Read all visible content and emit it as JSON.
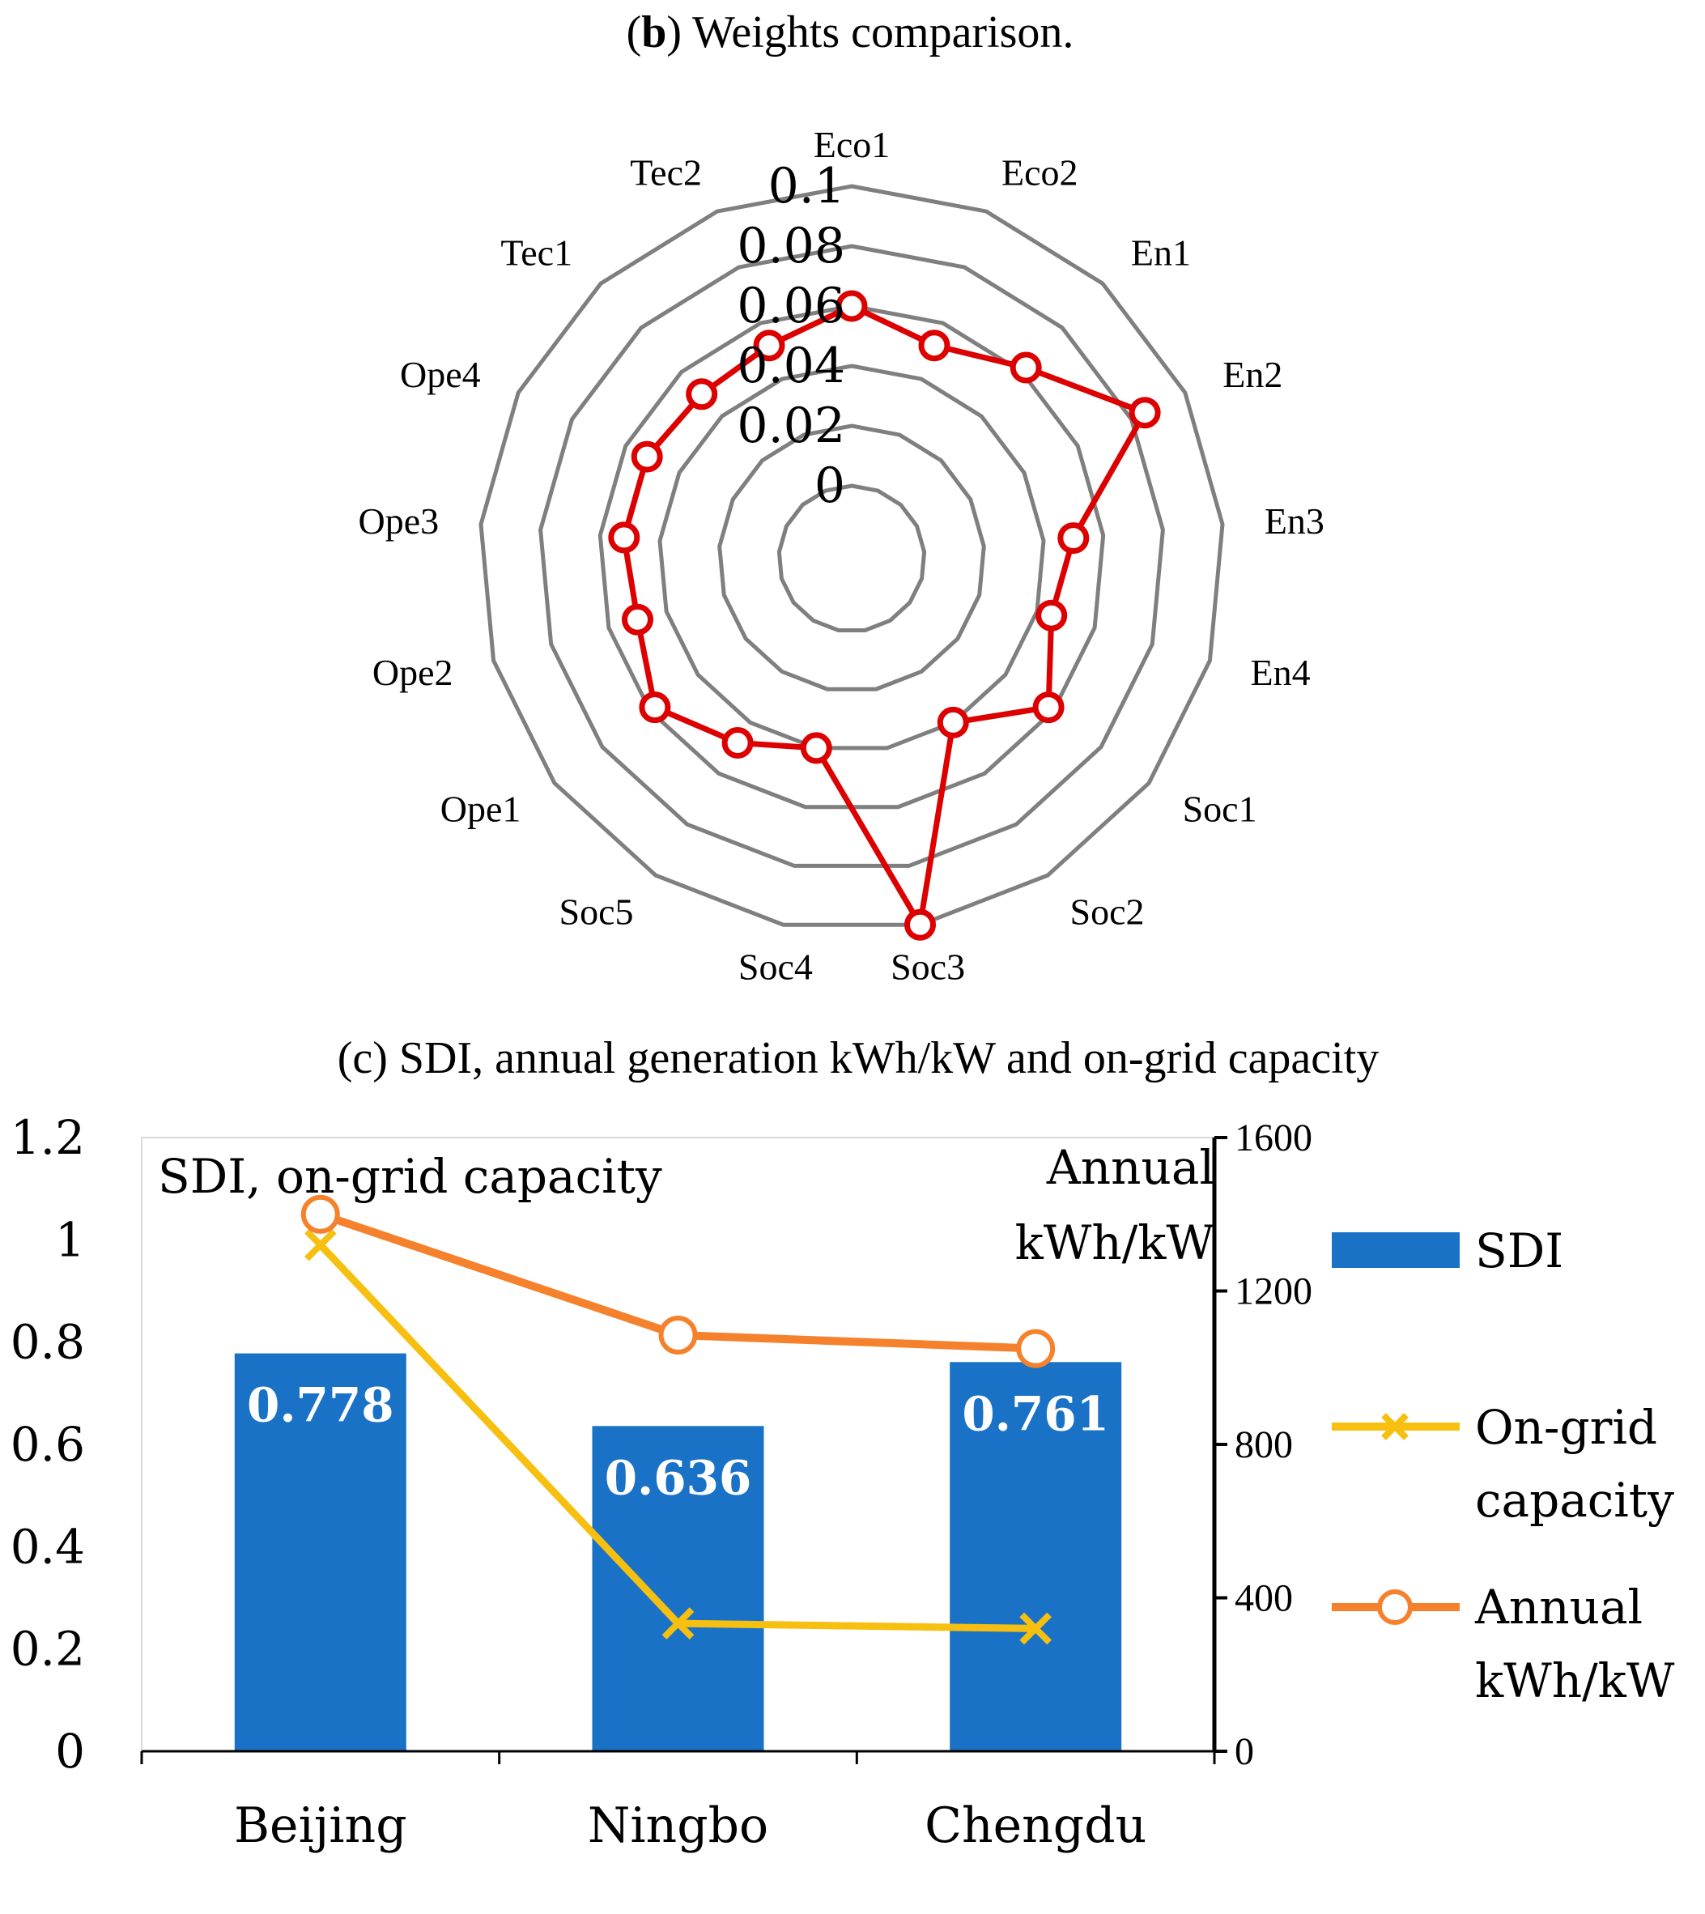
{
  "chart_data": [
    {
      "type": "radar",
      "title_prefix": "(",
      "title_bold": "b",
      "title_suffix": ") Weights comparison.",
      "categories": [
        "Eco1",
        "Eco2",
        "En1",
        "En2",
        "En3",
        "En4",
        "Soc1",
        "Soc2",
        "Soc3",
        "Soc4",
        "Soc5",
        "Ope1",
        "Ope2",
        "Ope3",
        "Ope4",
        "Tec1",
        "Tec2"
      ],
      "radial_ticks": [
        "0",
        "0.02",
        "0.04",
        "0.06",
        "0.08",
        "0.1"
      ],
      "rlim": [
        0,
        0.1
      ],
      "series": [
        {
          "color": "#dd0000",
          "marker": "circle",
          "values": [
            0.06,
            0.052,
            0.062,
            0.085,
            0.05,
            0.045,
            0.058,
            0.04,
            0.1,
            0.04,
            0.048,
            0.058,
            0.05,
            0.052,
            0.052,
            0.05,
            0.052
          ]
        }
      ],
      "grid": true
    },
    {
      "type": "bar",
      "title": "(c) SDI, annual generation kWh/kW and on-grid capacity",
      "categories": [
        "Beijing",
        "Ningbo",
        "Chengdu"
      ],
      "ylim": [
        0,
        1.2
      ],
      "yticks": [
        "0",
        "0.2",
        "0.4",
        "0.6",
        "0.8",
        "1",
        "1.2"
      ],
      "y2lim": [
        0,
        1600
      ],
      "y2ticks": [
        "0",
        "400",
        "800",
        "1200",
        "1600"
      ],
      "left_axis_label": "SDI, on-grid capacity",
      "right_axis_label_line1": "Annual",
      "right_axis_label_line2": "kWh/kW",
      "series": [
        {
          "name": "SDI",
          "kind": "bar",
          "axis": "left",
          "color": "#1a72c6",
          "values": [
            0.778,
            0.636,
            0.761
          ],
          "labels": [
            "0.778",
            "0.636",
            "0.761"
          ]
        },
        {
          "name_line1": "On-grid",
          "name_line2": "capacity",
          "kind": "line",
          "axis": "left",
          "color": "#f7bf0f",
          "marker": "x",
          "values": [
            0.99,
            0.25,
            0.24
          ]
        },
        {
          "name_line1": "Annual",
          "name_line2": "kWh/kW",
          "kind": "line",
          "axis": "right",
          "color": "#f5812d",
          "marker": "circle",
          "values": [
            1400,
            1085,
            1050
          ]
        }
      ],
      "legend": "right"
    }
  ]
}
